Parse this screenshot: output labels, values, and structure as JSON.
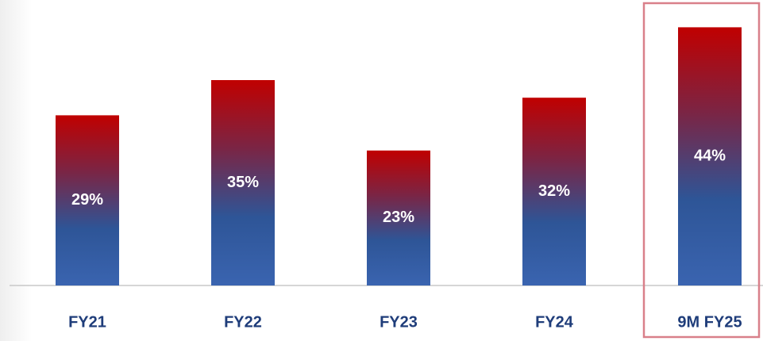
{
  "chart_data": {
    "type": "bar",
    "categories": [
      "FY21",
      "FY22",
      "FY23",
      "FY24",
      "9M FY25"
    ],
    "values": [
      29,
      35,
      23,
      32,
      44
    ],
    "value_labels": [
      "29%",
      "35%",
      "23%",
      "32%",
      "44%"
    ],
    "colors": [
      "#c00000",
      "#7a2545",
      "#2e5597",
      "#3a64b0"
    ]
  }
}
